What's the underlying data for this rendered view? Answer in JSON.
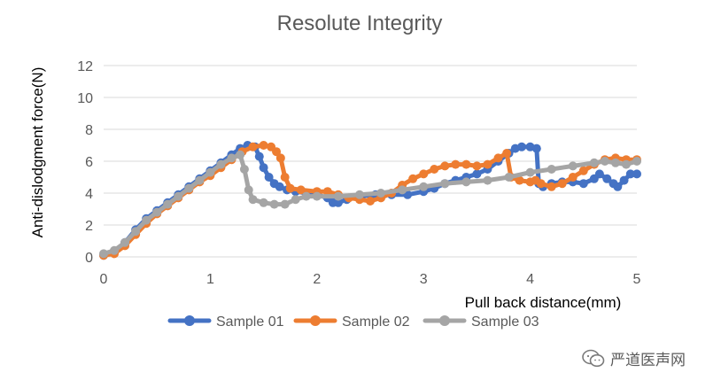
{
  "chart_data": {
    "type": "line",
    "title": "Resolute Integrity",
    "xlabel": "Pull back distance(mm)",
    "ylabel": "Anti-dislodgment force(N)",
    "xlim": [
      0,
      5
    ],
    "ylim": [
      0,
      12
    ],
    "xticks": [
      "0",
      "1",
      "2",
      "3",
      "4",
      "5"
    ],
    "yticks": [
      "0",
      "2",
      "4",
      "6",
      "8",
      "10",
      "12"
    ],
    "grid": "horizontal",
    "legend": "bottom",
    "series": [
      {
        "name": "Sample 01",
        "color": "#4472C4",
        "points": [
          [
            0,
            0.1
          ],
          [
            0.1,
            0.3
          ],
          [
            0.2,
            0.9
          ],
          [
            0.3,
            1.7
          ],
          [
            0.4,
            2.4
          ],
          [
            0.5,
            2.9
          ],
          [
            0.6,
            3.4
          ],
          [
            0.7,
            3.9
          ],
          [
            0.8,
            4.4
          ],
          [
            0.9,
            4.9
          ],
          [
            1.0,
            5.4
          ],
          [
            1.1,
            5.9
          ],
          [
            1.2,
            6.4
          ],
          [
            1.28,
            6.8
          ],
          [
            1.35,
            7.0
          ],
          [
            1.42,
            6.9
          ],
          [
            1.46,
            6.3
          ],
          [
            1.5,
            5.6
          ],
          [
            1.55,
            5.0
          ],
          [
            1.6,
            4.6
          ],
          [
            1.65,
            4.4
          ],
          [
            1.72,
            4.2
          ],
          [
            1.8,
            4.1
          ],
          [
            1.9,
            4.0
          ],
          [
            2.0,
            3.9
          ],
          [
            2.1,
            3.7
          ],
          [
            2.15,
            3.4
          ],
          [
            2.2,
            3.4
          ],
          [
            2.28,
            3.6
          ],
          [
            2.4,
            3.8
          ],
          [
            2.55,
            3.9
          ],
          [
            2.7,
            3.9
          ],
          [
            2.85,
            3.9
          ],
          [
            3.0,
            4.1
          ],
          [
            3.1,
            4.3
          ],
          [
            3.2,
            4.6
          ],
          [
            3.3,
            4.8
          ],
          [
            3.4,
            5.0
          ],
          [
            3.5,
            5.2
          ],
          [
            3.6,
            5.5
          ],
          [
            3.7,
            6.0
          ],
          [
            3.8,
            6.5
          ],
          [
            3.86,
            6.8
          ],
          [
            3.92,
            6.9
          ],
          [
            4.0,
            6.9
          ],
          [
            4.06,
            6.8
          ],
          [
            4.08,
            4.6
          ],
          [
            4.12,
            4.4
          ],
          [
            4.2,
            4.6
          ],
          [
            4.3,
            4.7
          ],
          [
            4.4,
            4.7
          ],
          [
            4.5,
            4.6
          ],
          [
            4.6,
            4.9
          ],
          [
            4.65,
            5.2
          ],
          [
            4.72,
            4.9
          ],
          [
            4.78,
            4.6
          ],
          [
            4.82,
            4.4
          ],
          [
            4.88,
            4.8
          ],
          [
            4.94,
            5.2
          ],
          [
            5.0,
            5.2
          ]
        ]
      },
      {
        "name": "Sample 02",
        "color": "#ED7D31",
        "points": [
          [
            0,
            0.1
          ],
          [
            0.1,
            0.2
          ],
          [
            0.2,
            0.7
          ],
          [
            0.3,
            1.4
          ],
          [
            0.4,
            2.1
          ],
          [
            0.5,
            2.7
          ],
          [
            0.6,
            3.2
          ],
          [
            0.7,
            3.7
          ],
          [
            0.8,
            4.2
          ],
          [
            0.9,
            4.7
          ],
          [
            1.0,
            5.1
          ],
          [
            1.1,
            5.6
          ],
          [
            1.2,
            6.1
          ],
          [
            1.3,
            6.6
          ],
          [
            1.4,
            6.9
          ],
          [
            1.5,
            7.0
          ],
          [
            1.57,
            6.9
          ],
          [
            1.62,
            6.6
          ],
          [
            1.66,
            6.2
          ],
          [
            1.7,
            5.0
          ],
          [
            1.75,
            4.3
          ],
          [
            1.85,
            4.2
          ],
          [
            2.0,
            4.1
          ],
          [
            2.1,
            4.1
          ],
          [
            2.2,
            3.9
          ],
          [
            2.3,
            3.7
          ],
          [
            2.4,
            3.6
          ],
          [
            2.5,
            3.5
          ],
          [
            2.6,
            3.7
          ],
          [
            2.7,
            4.0
          ],
          [
            2.8,
            4.5
          ],
          [
            2.9,
            4.9
          ],
          [
            3.0,
            5.2
          ],
          [
            3.1,
            5.5
          ],
          [
            3.2,
            5.7
          ],
          [
            3.3,
            5.8
          ],
          [
            3.4,
            5.8
          ],
          [
            3.5,
            5.7
          ],
          [
            3.6,
            5.8
          ],
          [
            3.7,
            6.2
          ],
          [
            3.78,
            6.5
          ],
          [
            3.82,
            5.0
          ],
          [
            3.9,
            4.8
          ],
          [
            4.0,
            4.7
          ],
          [
            4.05,
            4.8
          ],
          [
            4.1,
            4.6
          ],
          [
            4.2,
            4.4
          ],
          [
            4.3,
            4.6
          ],
          [
            4.4,
            5.0
          ],
          [
            4.5,
            5.4
          ],
          [
            4.6,
            5.8
          ],
          [
            4.7,
            6.1
          ],
          [
            4.8,
            6.2
          ],
          [
            4.9,
            6.1
          ],
          [
            5.0,
            6.1
          ]
        ]
      },
      {
        "name": "Sample 03",
        "color": "#A5A5A5",
        "points": [
          [
            0,
            0.2
          ],
          [
            0.1,
            0.4
          ],
          [
            0.2,
            0.9
          ],
          [
            0.3,
            1.6
          ],
          [
            0.4,
            2.3
          ],
          [
            0.5,
            2.8
          ],
          [
            0.6,
            3.3
          ],
          [
            0.7,
            3.8
          ],
          [
            0.8,
            4.3
          ],
          [
            0.9,
            4.8
          ],
          [
            1.0,
            5.3
          ],
          [
            1.1,
            5.8
          ],
          [
            1.2,
            6.2
          ],
          [
            1.28,
            6.4
          ],
          [
            1.32,
            5.5
          ],
          [
            1.36,
            4.2
          ],
          [
            1.4,
            3.6
          ],
          [
            1.5,
            3.4
          ],
          [
            1.6,
            3.3
          ],
          [
            1.7,
            3.3
          ],
          [
            1.8,
            3.6
          ],
          [
            1.9,
            3.8
          ],
          [
            2.0,
            3.8
          ],
          [
            2.2,
            3.8
          ],
          [
            2.4,
            3.9
          ],
          [
            2.6,
            4.0
          ],
          [
            2.8,
            4.2
          ],
          [
            3.0,
            4.4
          ],
          [
            3.2,
            4.6
          ],
          [
            3.4,
            4.7
          ],
          [
            3.6,
            4.8
          ],
          [
            3.8,
            5.0
          ],
          [
            4.0,
            5.3
          ],
          [
            4.2,
            5.5
          ],
          [
            4.4,
            5.7
          ],
          [
            4.6,
            5.9
          ],
          [
            4.7,
            6.0
          ],
          [
            4.8,
            5.9
          ],
          [
            4.9,
            5.8
          ],
          [
            5.0,
            6.0
          ]
        ]
      }
    ]
  },
  "watermark": {
    "text": "严道医声网",
    "icon": "wechat-icon"
  }
}
